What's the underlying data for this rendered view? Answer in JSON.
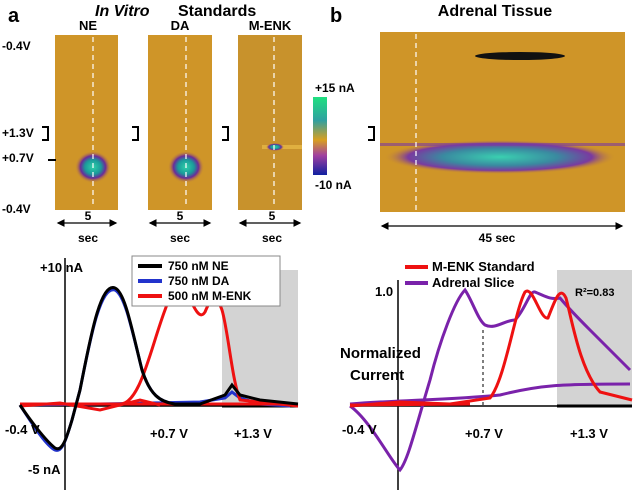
{
  "panel_a": {
    "letter": "a",
    "title_italic": "In Vitro",
    "title_rest": "Standards",
    "plots": [
      "NE",
      "DA",
      "M-ENK"
    ],
    "potentials": [
      "-0.4V",
      "+1.3V",
      "+0.7V",
      "-0.4V"
    ],
    "colorbar": {
      "max": "+15 nA",
      "min": "-10 nA"
    },
    "time": {
      "value": "5",
      "unit": "sec"
    },
    "cv": {
      "y_top": "+10 nA",
      "y_bottom": "-5 nA",
      "x_labels": [
        "-0.4 V",
        "+0.7 V",
        "+1.3 V"
      ],
      "legend": [
        "750 nM NE",
        "750 nM DA",
        "500 nM M-ENK"
      ]
    }
  },
  "panel_b": {
    "letter": "b",
    "title": "Adrenal Tissue",
    "time": "45 sec",
    "cv": {
      "y_label": [
        "Normalized",
        "Current"
      ],
      "y_top": "1.0",
      "x_labels": [
        "-0.4 V",
        "+0.7 V",
        "+1.3 V"
      ],
      "legend": [
        "M-ENK Standard",
        "Adrenal Slice"
      ],
      "annotation": "R²=0.83"
    }
  }
}
